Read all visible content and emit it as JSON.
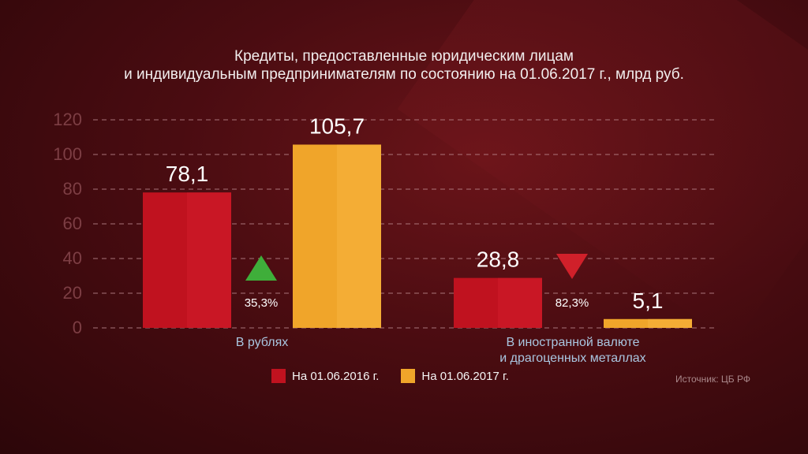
{
  "chart_data": {
    "type": "bar",
    "title_line1": "Кредиты, предоставленные юридическим лицам",
    "title_line2": "и индивидуальным предпринимателям по состоянию на 01.06.2017 г., млрд руб.",
    "ylim": [
      0,
      120
    ],
    "yticks": [
      0,
      20,
      40,
      60,
      80,
      100,
      120
    ],
    "categories": [
      {
        "line1": "В рублях",
        "line2": ""
      },
      {
        "line1": "В иностранной валюте",
        "line2": "и драгоценных металлах"
      }
    ],
    "series": [
      {
        "name": "На 01.06.2016 г.",
        "color": "#c0121f",
        "values": [
          78.1,
          28.8
        ],
        "labels": [
          "78,1",
          "28,8"
        ]
      },
      {
        "name": "На 01.06.2017 г.",
        "color": "#f0a52a",
        "values": [
          105.7,
          5.1
        ],
        "labels": [
          "105,7",
          "5,1"
        ]
      }
    ],
    "changes": [
      {
        "label": "35,3%",
        "direction": "up",
        "color": "#3fae3a"
      },
      {
        "label": "82,3%",
        "direction": "down",
        "color": "#d0202a"
      }
    ],
    "source": "Источник: ЦБ РФ"
  }
}
